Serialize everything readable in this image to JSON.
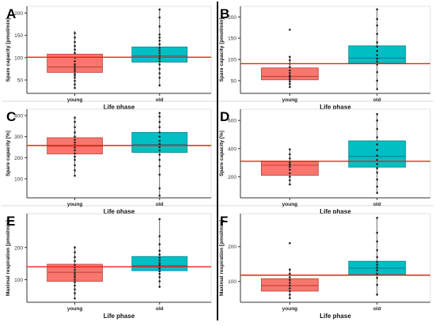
{
  "chart_data": [
    {
      "type": "box",
      "panel_label": "A",
      "categories": [
        "young",
        "old"
      ],
      "xlabel": "Life phase",
      "ylabel": "Spare capacity [pmol/min]",
      "yticks": [
        50,
        100,
        150,
        200
      ],
      "ylim": [
        20,
        215
      ],
      "reference_line": 101,
      "boxes": [
        {
          "name": "young",
          "q1": 67,
          "median": 79,
          "q3": 108,
          "whisker_low": 30,
          "whisker_high": 160
        },
        {
          "name": "old",
          "q1": 90,
          "median": 104,
          "q3": 124,
          "whisker_low": 35,
          "whisker_high": 210
        }
      ],
      "points": [
        {
          "category": "young",
          "values": [
            32,
            40,
            48,
            55,
            60,
            64,
            70,
            75,
            80,
            85,
            92,
            100,
            110,
            118,
            126,
            135,
            145,
            155
          ]
        },
        {
          "category": "old",
          "values": [
            38,
            55,
            65,
            75,
            85,
            92,
            98,
            104,
            110,
            116,
            122,
            130,
            138,
            145,
            152,
            170,
            190,
            208
          ]
        }
      ]
    },
    {
      "type": "box",
      "panel_label": "B",
      "categories": [
        "young",
        "old"
      ],
      "xlabel": "Life phase",
      "ylabel": "Spare capacity [pmol/min]",
      "yticks": [
        50,
        100,
        150,
        200
      ],
      "ylim": [
        20,
        225
      ],
      "reference_line": 90,
      "boxes": [
        {
          "name": "young",
          "q1": 52,
          "median": 60,
          "q3": 80,
          "whisker_low": 33,
          "whisker_high": 108
        },
        {
          "name": "old",
          "q1": 92,
          "median": 103,
          "q3": 132,
          "whisker_low": 28,
          "whisker_high": 220
        }
      ],
      "points": [
        {
          "category": "young",
          "values": [
            35,
            42,
            48,
            53,
            58,
            62,
            68,
            74,
            82,
            90,
            98,
            106,
            170
          ]
        },
        {
          "category": "old",
          "values": [
            30,
            50,
            70,
            88,
            95,
            102,
            110,
            120,
            130,
            140,
            160,
            180,
            195,
            218
          ]
        }
      ]
    },
    {
      "type": "box",
      "panel_label": "C",
      "categories": [
        "young",
        "old"
      ],
      "xlabel": "Life phase",
      "ylabel": "Spare capacity [%]",
      "yticks": [
        100,
        200,
        300,
        400
      ],
      "ylim": [
        10,
        430
      ],
      "reference_line": 258,
      "boxes": [
        {
          "name": "young",
          "q1": 218,
          "median": 255,
          "q3": 295,
          "whisker_low": 110,
          "whisker_high": 395
        },
        {
          "name": "old",
          "q1": 225,
          "median": 262,
          "q3": 320,
          "whisker_low": 20,
          "whisker_high": 415
        }
      ],
      "points": [
        {
          "category": "young",
          "values": [
            115,
            140,
            165,
            190,
            205,
            220,
            235,
            248,
            260,
            272,
            285,
            300,
            320,
            345,
            370,
            390
          ]
        },
        {
          "category": "old",
          "values": [
            20,
            55,
            120,
            160,
            190,
            215,
            235,
            250,
            265,
            280,
            300,
            320,
            345,
            370,
            395,
            412
          ]
        }
      ]
    },
    {
      "type": "box",
      "panel_label": "D",
      "categories": [
        "young",
        "old"
      ],
      "xlabel": "Life phase",
      "ylabel": "Spare capacity [%]",
      "yticks": [
        200,
        400,
        600
      ],
      "ylim": [
        50,
        680
      ],
      "reference_line": 310,
      "boxes": [
        {
          "name": "young",
          "q1": 210,
          "median": 282,
          "q3": 312,
          "whisker_low": 140,
          "whisker_high": 400
        },
        {
          "name": "old",
          "q1": 268,
          "median": 345,
          "q3": 455,
          "whisker_low": 80,
          "whisker_high": 650
        }
      ],
      "points": [
        {
          "category": "young",
          "values": [
            145,
            175,
            200,
            225,
            250,
            270,
            285,
            300,
            330,
            360,
            395
          ]
        },
        {
          "category": "old",
          "values": [
            85,
            130,
            180,
            230,
            260,
            290,
            320,
            350,
            390,
            430,
            480,
            540,
            600,
            645
          ]
        }
      ]
    },
    {
      "type": "box",
      "panel_label": "E",
      "categories": [
        "young",
        "old"
      ],
      "xlabel": "Life phase",
      "ylabel": "Maximal respiration [pmol/min]",
      "yticks": [
        100,
        200
      ],
      "ylim": [
        30,
        305
      ],
      "reference_line": 140,
      "boxes": [
        {
          "name": "young",
          "q1": 95,
          "median": 123,
          "q3": 148,
          "whisker_low": 40,
          "whisker_high": 205
        },
        {
          "name": "old",
          "q1": 128,
          "median": 143,
          "q3": 172,
          "whisker_low": 75,
          "whisker_high": 290
        }
      ],
      "points": [
        {
          "category": "young",
          "values": [
            42,
            58,
            70,
            82,
            92,
            100,
            108,
            115,
            122,
            130,
            138,
            146,
            158,
            170,
            185,
            200
          ]
        },
        {
          "category": "old",
          "values": [
            78,
            95,
            108,
            118,
            126,
            134,
            140,
            146,
            152,
            160,
            168,
            178,
            190,
            210,
            235,
            288
          ]
        }
      ]
    },
    {
      "type": "box",
      "panel_label": "F",
      "categories": [
        "young",
        "old"
      ],
      "xlabel": "Life phase",
      "ylabel": "Maximal respiration [pmol/min]",
      "yticks": [
        100,
        200
      ],
      "ylim": [
        40,
        295
      ],
      "reference_line": 118,
      "boxes": [
        {
          "name": "young",
          "q1": 72,
          "median": 88,
          "q3": 108,
          "whisker_low": 50,
          "whisker_high": 138
        },
        {
          "name": "old",
          "q1": 120,
          "median": 138,
          "q3": 158,
          "whisker_low": 60,
          "whisker_high": 285
        }
      ],
      "points": [
        {
          "category": "young",
          "values": [
            52,
            62,
            72,
            80,
            88,
            96,
            104,
            112,
            122,
            134,
            210
          ]
        },
        {
          "category": "old",
          "values": [
            62,
            90,
            110,
            122,
            132,
            140,
            148,
            156,
            170,
            190,
            215,
            240,
            283
          ]
        }
      ]
    }
  ],
  "colors": {
    "young_fill": "#f8766d",
    "young_stroke": "#b8443c",
    "old_fill": "#00bfc4",
    "old_stroke": "#00838a",
    "reference_line": "#ff1a1a",
    "points": "#222222",
    "axis": "#333333"
  }
}
